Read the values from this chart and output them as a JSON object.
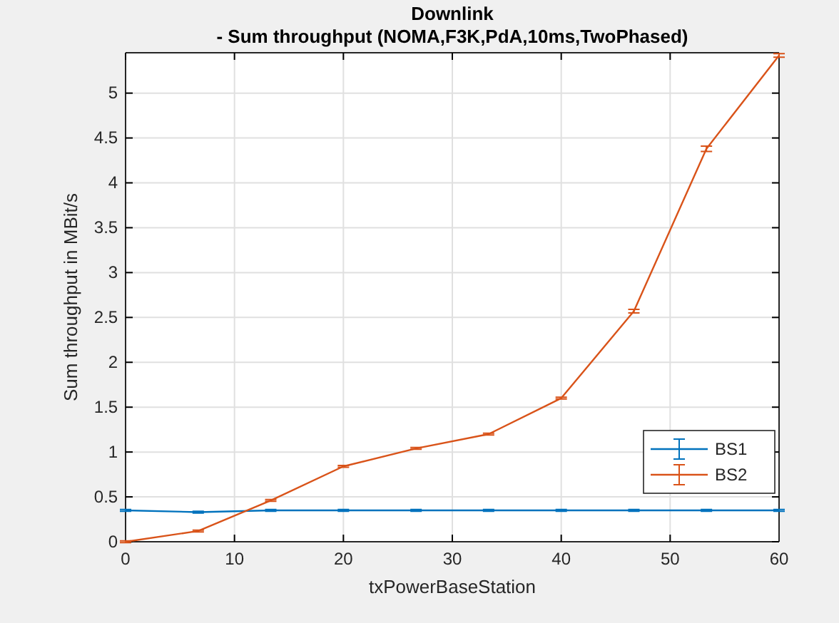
{
  "chart_data": {
    "type": "line",
    "title": "Downlink",
    "subtitle": "- Sum throughput (NOMA,F3K,PdA,10ms,TwoPhased)",
    "xlabel": "txPowerBaseStation",
    "ylabel": "Sum throughput in MBit/s",
    "x": [
      0,
      6.67,
      13.33,
      20,
      26.67,
      33.33,
      40,
      46.67,
      53.33,
      60
    ],
    "series": [
      {
        "name": "BS1",
        "color": "#0072bd",
        "values": [
          0.35,
          0.33,
          0.35,
          0.35,
          0.35,
          0.35,
          0.35,
          0.35,
          0.35,
          0.35
        ],
        "errors": [
          0.01,
          0.01,
          0.01,
          0.01,
          0.01,
          0.01,
          0.01,
          0.01,
          0.01,
          0.01
        ]
      },
      {
        "name": "BS2",
        "color": "#d95319",
        "values": [
          0,
          0.12,
          0.46,
          0.84,
          1.04,
          1.2,
          1.6,
          2.57,
          4.38,
          5.42
        ],
        "errors": [
          0.01,
          0.01,
          0.01,
          0.01,
          0.01,
          0.01,
          0.01,
          0.02,
          0.03,
          0.02
        ]
      }
    ],
    "xlim": [
      0,
      60
    ],
    "xticks": [
      0,
      10,
      20,
      30,
      40,
      50,
      60
    ],
    "ylim": [
      0,
      5.45
    ],
    "yticks": [
      0,
      0.5,
      1,
      1.5,
      2,
      2.5,
      3,
      3.5,
      4,
      4.5,
      5
    ],
    "grid": true,
    "legend": "bottom right",
    "marker": "none",
    "line_style": "solid"
  }
}
